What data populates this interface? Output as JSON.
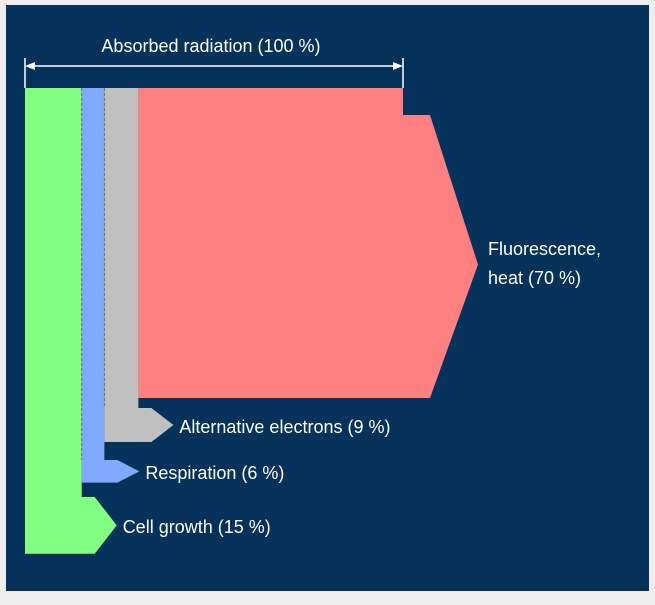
{
  "chart_data": {
    "type": "sankey",
    "source": {
      "label": "Absorbed radiation (100 %)",
      "value": 100
    },
    "flows": [
      {
        "label": [
          "Cell growth (15 %)"
        ],
        "value": 15,
        "color": "#80ff80"
      },
      {
        "label": [
          "Respiration (6 %)"
        ],
        "value": 6,
        "color": "#80aaff"
      },
      {
        "label": [
          "Alternative electrons (9 %)"
        ],
        "value": 9,
        "color": "#c0c0c0"
      },
      {
        "label": [
          "Fluorescence,",
          "heat (70 %)"
        ],
        "value": 70,
        "color": "#ff8080"
      }
    ]
  }
}
